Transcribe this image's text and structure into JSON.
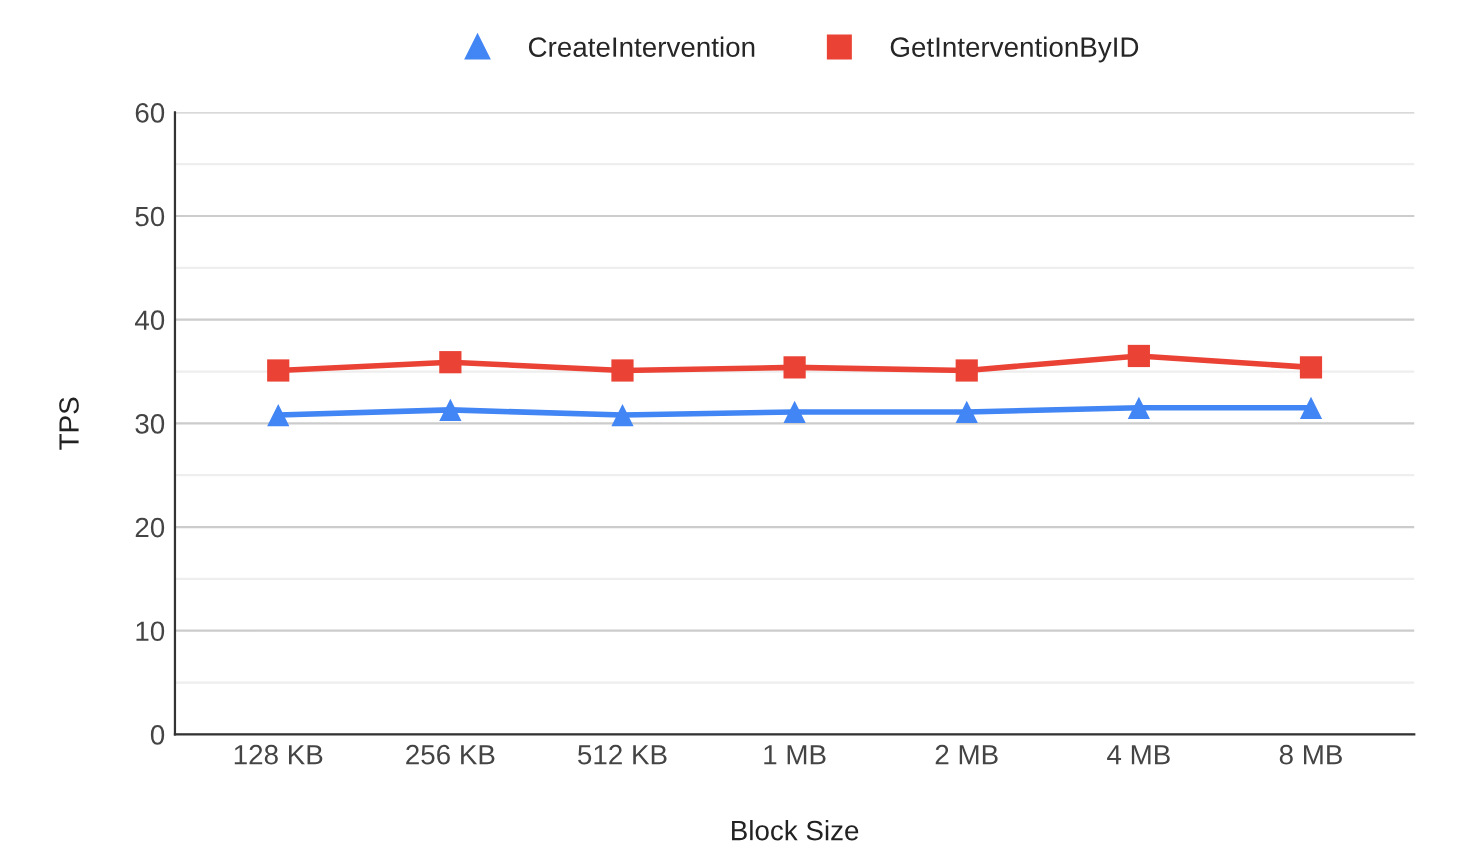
{
  "chart_data": {
    "type": "line",
    "xlabel": "Block Size",
    "ylabel": "TPS",
    "categories": [
      "128 KB",
      "256 KB",
      "512 KB",
      "1 MB",
      "2 MB",
      "4 MB",
      "8 MB"
    ],
    "series": [
      {
        "name": "CreateIntervention",
        "color": "#4285f4",
        "marker": "triangle",
        "values": [
          30.8,
          31.3,
          30.8,
          31.1,
          31.1,
          31.5,
          31.5
        ]
      },
      {
        "name": "GetInterventionByID",
        "color": "#ea4335",
        "marker": "square",
        "values": [
          35.1,
          35.9,
          35.1,
          35.4,
          35.1,
          36.5,
          35.4
        ]
      }
    ],
    "ylim": [
      0,
      60
    ],
    "yticks": [
      0,
      {
        "value": 5,
        "label": null
      },
      10,
      {
        "value": 15,
        "label": null
      },
      20,
      {
        "value": 25,
        "label": null
      },
      30,
      {
        "value": 35,
        "label": null
      },
      40,
      {
        "value": 45,
        "label": null
      },
      50,
      {
        "value": 55,
        "label": null
      },
      60
    ],
    "grid": "y",
    "legend": "top",
    "line_style": "solid"
  }
}
